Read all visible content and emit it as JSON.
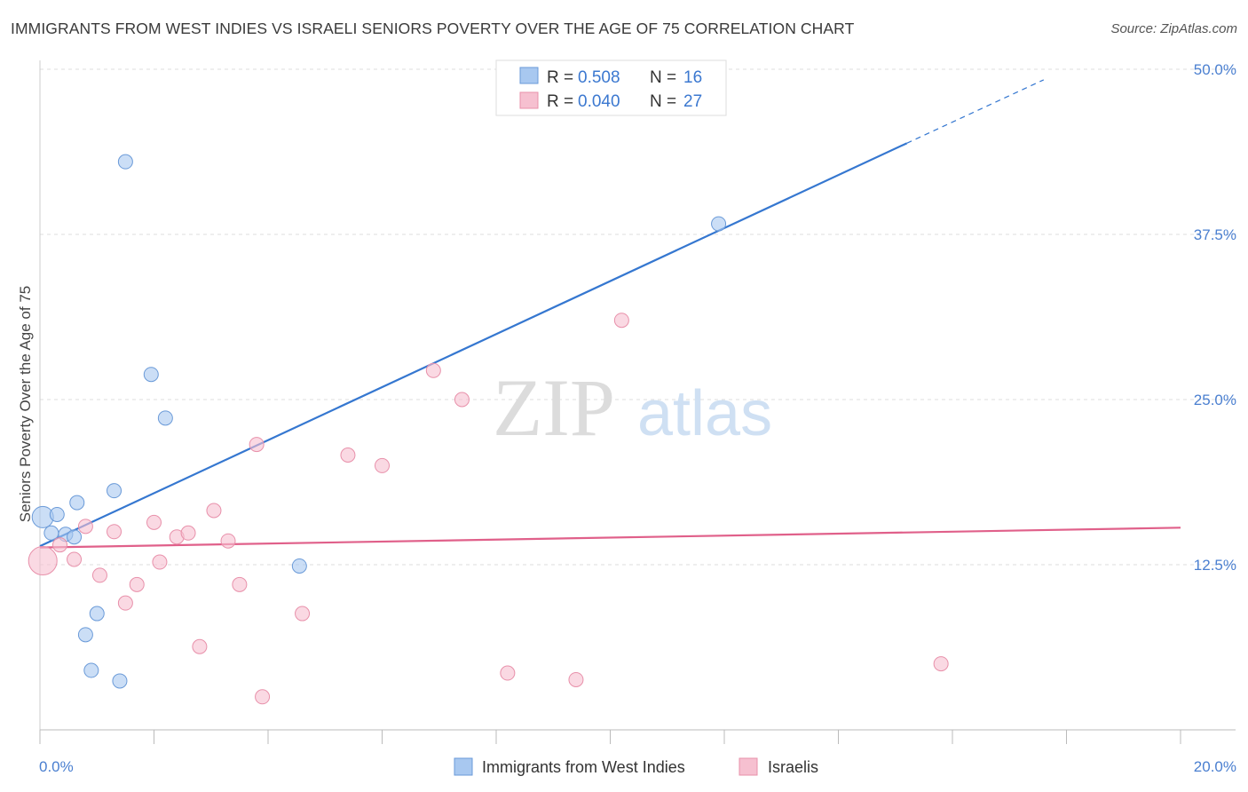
{
  "title": "IMMIGRANTS FROM WEST INDIES VS ISRAELI SENIORS POVERTY OVER THE AGE OF 75 CORRELATION CHART",
  "source": "Source: ZipAtlas.com",
  "watermark": {
    "zip": "ZIP",
    "atlas": "atlas"
  },
  "chart_data": {
    "type": "scatter",
    "title": "IMMIGRANTS FROM WEST INDIES VS ISRAELI SENIORS POVERTY OVER THE AGE OF 75 CORRELATION CHART",
    "xlabel": "",
    "ylabel": "Seniors Poverty Over the Age of 75",
    "xlim": [
      0,
      20
    ],
    "ylim": [
      0,
      50
    ],
    "x_ticks": [
      {
        "value": 0,
        "label": "0.0%"
      },
      {
        "value": 20,
        "label": "20.0%"
      }
    ],
    "y_ticks": [
      {
        "value": 12.5,
        "label": "12.5%"
      },
      {
        "value": 25,
        "label": "25.0%"
      },
      {
        "value": 37.5,
        "label": "37.5%"
      },
      {
        "value": 50,
        "label": "50.0%"
      }
    ],
    "legend": [
      {
        "r_label": "R =",
        "r_value": "0.508",
        "n_label": "N =",
        "n_value": "16"
      },
      {
        "r_label": "R =",
        "r_value": "0.040",
        "n_label": "N =",
        "n_value": "27"
      }
    ],
    "series": [
      {
        "name": "Immigrants from West Indies",
        "color": "#a8c8f0",
        "stroke": "#6a9ad8",
        "line_color": "#3577d0",
        "trend": {
          "x0": 0,
          "y0": 13.9,
          "x1": 15.2,
          "y1": 44.4,
          "dash_to_x": 17.6,
          "dash_to_y": 49.2
        },
        "points": [
          {
            "x": 0.05,
            "y": 16.1,
            "size": 12
          },
          {
            "x": 0.2,
            "y": 14.9,
            "size": 8
          },
          {
            "x": 0.3,
            "y": 16.3,
            "size": 8
          },
          {
            "x": 0.45,
            "y": 14.8,
            "size": 8
          },
          {
            "x": 0.6,
            "y": 14.6,
            "size": 8
          },
          {
            "x": 0.65,
            "y": 17.2,
            "size": 8
          },
          {
            "x": 0.8,
            "y": 7.2,
            "size": 8
          },
          {
            "x": 0.9,
            "y": 4.5,
            "size": 8
          },
          {
            "x": 1.0,
            "y": 8.8,
            "size": 8
          },
          {
            "x": 1.3,
            "y": 18.1,
            "size": 8
          },
          {
            "x": 1.4,
            "y": 3.7,
            "size": 8
          },
          {
            "x": 1.5,
            "y": 43.0,
            "size": 8
          },
          {
            "x": 1.95,
            "y": 26.9,
            "size": 8
          },
          {
            "x": 2.2,
            "y": 23.6,
            "size": 8
          },
          {
            "x": 4.55,
            "y": 12.4,
            "size": 8
          },
          {
            "x": 11.9,
            "y": 38.3,
            "size": 8
          }
        ]
      },
      {
        "name": "Israelis",
        "color": "#f6c0d0",
        "stroke": "#e890aa",
        "line_color": "#e0608a",
        "trend": {
          "x0": 0,
          "y0": 13.8,
          "x1": 20,
          "y1": 15.3
        },
        "points": [
          {
            "x": 0.05,
            "y": 12.8,
            "size": 16
          },
          {
            "x": 0.35,
            "y": 14.0,
            "size": 8
          },
          {
            "x": 0.6,
            "y": 12.9,
            "size": 8
          },
          {
            "x": 0.8,
            "y": 15.4,
            "size": 8
          },
          {
            "x": 1.05,
            "y": 11.7,
            "size": 8
          },
          {
            "x": 1.3,
            "y": 15.0,
            "size": 8
          },
          {
            "x": 1.5,
            "y": 9.6,
            "size": 8
          },
          {
            "x": 1.7,
            "y": 11.0,
            "size": 8
          },
          {
            "x": 2.0,
            "y": 15.7,
            "size": 8
          },
          {
            "x": 2.1,
            "y": 12.7,
            "size": 8
          },
          {
            "x": 2.4,
            "y": 14.6,
            "size": 8
          },
          {
            "x": 2.6,
            "y": 14.9,
            "size": 8
          },
          {
            "x": 2.8,
            "y": 6.3,
            "size": 8
          },
          {
            "x": 3.05,
            "y": 16.6,
            "size": 8
          },
          {
            "x": 3.3,
            "y": 14.3,
            "size": 8
          },
          {
            "x": 3.5,
            "y": 11.0,
            "size": 8
          },
          {
            "x": 3.8,
            "y": 21.6,
            "size": 8
          },
          {
            "x": 3.9,
            "y": 2.5,
            "size": 8
          },
          {
            "x": 4.6,
            "y": 8.8,
            "size": 8
          },
          {
            "x": 5.4,
            "y": 20.8,
            "size": 8
          },
          {
            "x": 6.0,
            "y": 20.0,
            "size": 8
          },
          {
            "x": 6.9,
            "y": 27.2,
            "size": 8
          },
          {
            "x": 7.4,
            "y": 25.0,
            "size": 8
          },
          {
            "x": 8.2,
            "y": 4.3,
            "size": 8
          },
          {
            "x": 9.4,
            "y": 3.8,
            "size": 8
          },
          {
            "x": 10.2,
            "y": 31.0,
            "size": 8
          },
          {
            "x": 15.8,
            "y": 5.0,
            "size": 8
          }
        ]
      }
    ]
  }
}
